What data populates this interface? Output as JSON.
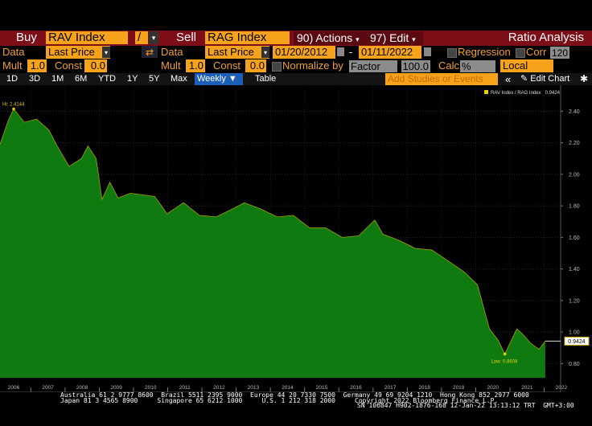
{
  "toolbar": {
    "row1": {
      "buy": "Buy",
      "buy_ticker": "RAV Index",
      "operator": "/",
      "sell": "Sell",
      "sell_ticker": "RAG Index",
      "actions": "90) Actions",
      "edit": "97) Edit",
      "title": "Ratio Analysis"
    },
    "row2": {
      "data_a": "Data",
      "field_a": "Last Price",
      "data_b": "Data",
      "field_b": "Last Price",
      "start": "01/20/2012",
      "dash": "-",
      "end": "01/11/2022",
      "regression": "Regression",
      "corr": "Corr",
      "corr_value": "120"
    },
    "row3": {
      "mult_a": "Mult",
      "mult_a_value": "1.0",
      "const_a": "Const",
      "const_a_value": "0.0",
      "mult_b": "Mult",
      "mult_b_value": "1.0",
      "const_b": "Const",
      "const_b_value": "0.0",
      "normalize": "Normalize by",
      "factor": "Factor",
      "factor_value": "100.0",
      "calc": "Calc",
      "calc_value": "%",
      "currency": "Local"
    },
    "row4": {
      "periods": [
        "1D",
        "3D",
        "1M",
        "6M",
        "YTD",
        "1Y",
        "5Y",
        "Max"
      ],
      "frequency": "Weekly",
      "table": "Table",
      "studies": "Add Studies or Events",
      "edit_chart": "Edit Chart"
    }
  },
  "chart_data": {
    "type": "area",
    "x": [
      2006.1,
      2006.34,
      2006.5,
      2006.81,
      2007.17,
      2007.53,
      2007.77,
      2008.12,
      2008.48,
      2008.67,
      2008.91,
      2009.08,
      2009.31,
      2009.55,
      2009.91,
      2010.62,
      2010.98,
      2011.46,
      2011.93,
      2012.41,
      2012.89,
      2013.24,
      2013.72,
      2014.2,
      2014.67,
      2015.15,
      2015.62,
      2016.1,
      2016.58,
      2017.05,
      2017.29,
      2017.77,
      2018.24,
      2018.72,
      2019.2,
      2019.67,
      2020.05,
      2020.4,
      2020.65,
      2020.85,
      2021.2,
      2021.4,
      2021.6,
      2021.85,
      2022.03
    ],
    "series": [
      {
        "name": "RAV Index / RAG Index",
        "color": "#0e7a10",
        "values": [
          2.19,
          2.34,
          2.4144,
          2.33,
          2.35,
          2.28,
          2.18,
          2.05,
          2.1,
          2.18,
          2.1,
          1.84,
          1.95,
          1.85,
          1.88,
          1.86,
          1.75,
          1.82,
          1.74,
          1.73,
          1.78,
          1.82,
          1.78,
          1.73,
          1.74,
          1.66,
          1.66,
          1.6,
          1.61,
          1.71,
          1.62,
          1.58,
          1.53,
          1.52,
          1.45,
          1.38,
          1.3,
          1.02,
          0.95,
          0.8608,
          1.02,
          0.98,
          0.93,
          0.89,
          0.9424
        ]
      }
    ],
    "annotations": [
      {
        "text": "Hi: 2.4144"
      },
      {
        "text": "Low: 0.8608"
      }
    ],
    "xlim": [
      2006.1,
      2022.48
    ],
    "xticks": [
      2006,
      2007,
      2008,
      2009,
      2010,
      2011,
      2012,
      2013,
      2014,
      2015,
      2016,
      2017,
      2018,
      2019,
      2020,
      2021,
      2022
    ],
    "ylim": [
      0.71,
      2.57
    ],
    "yticks": [
      {
        "value": 0.8,
        "label": "0.80"
      },
      {
        "value": 1.0,
        "label": "1.00"
      },
      {
        "value": 1.2,
        "label": "1.20"
      },
      {
        "value": 1.4,
        "label": "1.40"
      },
      {
        "value": 1.6,
        "label": "1.60"
      },
      {
        "value": 1.8,
        "label": "1.80"
      },
      {
        "value": 2.0,
        "label": "2.00"
      },
      {
        "value": 2.2,
        "label": "2.20"
      },
      {
        "value": 2.4,
        "label": "2.40"
      }
    ],
    "grid": true,
    "legend": "top-right"
  },
  "footer": {
    "line1": "Australia 61 2 9777 8600  Brazil 5511 2395 9000  Europe 44 20 7330 7500  Germany 49 69 9204 1210  Hong Kong 852 2977 6000",
    "line2": "Japan 81 3 4565 8900     Singapore 65 6212 1000     U.S. 1 212 318 2000     Copyright 2022 Bloomberg Finance L.P.",
    "line3": "SN 106847 H902-1876-168 12-Jan-22 13:13:12 TRT  GMT+3:00"
  }
}
